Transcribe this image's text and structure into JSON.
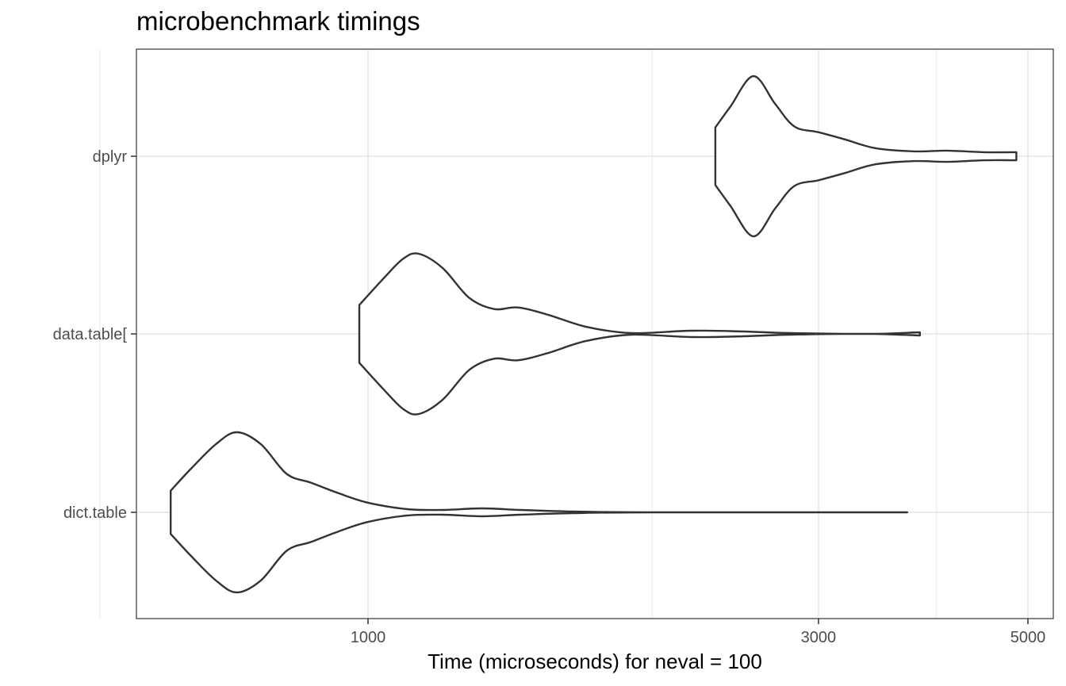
{
  "chart_data": {
    "type": "violin",
    "title": "microbenchmark timings",
    "xlabel": "Time (microseconds) for neval = 100",
    "ylabel": "",
    "x_scale": "log10",
    "xlim": [
      500,
      5200
    ],
    "x_ticks": [
      1000,
      3000,
      5000
    ],
    "x_minor_ticks": [
      2000,
      4000
    ],
    "grid": true,
    "categories": [
      "dplyr",
      "data.table[",
      "dict.table"
    ],
    "series": [
      {
        "category": "dplyr",
        "min": 2333,
        "max": 4861,
        "density": [
          [
            2333,
            0.36
          ],
          [
            2420,
            0.62
          ],
          [
            2560,
            1.0
          ],
          [
            2700,
            0.65
          ],
          [
            2830,
            0.37
          ],
          [
            3000,
            0.3
          ],
          [
            3200,
            0.21
          ],
          [
            3450,
            0.1
          ],
          [
            3800,
            0.06
          ],
          [
            4100,
            0.07
          ],
          [
            4500,
            0.05
          ],
          [
            4861,
            0.05
          ]
        ]
      },
      {
        "category": "data.table[",
        "min": 979,
        "max": 3842,
        "density": [
          [
            979,
            0.36
          ],
          [
            1040,
            0.7
          ],
          [
            1090,
            0.94
          ],
          [
            1132,
            1.0
          ],
          [
            1200,
            0.82
          ],
          [
            1280,
            0.45
          ],
          [
            1360,
            0.31
          ],
          [
            1440,
            0.33
          ],
          [
            1550,
            0.24
          ],
          [
            1700,
            0.09
          ],
          [
            1900,
            0.01
          ],
          [
            2200,
            0.04
          ],
          [
            2500,
            0.03
          ],
          [
            2800,
            0.01
          ],
          [
            3400,
            0.0
          ],
          [
            3842,
            0.02
          ]
        ]
      },
      {
        "category": "dict.table",
        "min": 618,
        "max": 3725,
        "density": [
          [
            618,
            0.27
          ],
          [
            650,
            0.55
          ],
          [
            690,
            0.85
          ],
          [
            726,
            1.0
          ],
          [
            770,
            0.85
          ],
          [
            820,
            0.48
          ],
          [
            870,
            0.37
          ],
          [
            930,
            0.24
          ],
          [
            1000,
            0.12
          ],
          [
            1100,
            0.04
          ],
          [
            1200,
            0.03
          ],
          [
            1320,
            0.05
          ],
          [
            1450,
            0.03
          ],
          [
            1650,
            0.01
          ],
          [
            2000,
            0.0
          ],
          [
            3725,
            0.0
          ]
        ]
      }
    ]
  }
}
